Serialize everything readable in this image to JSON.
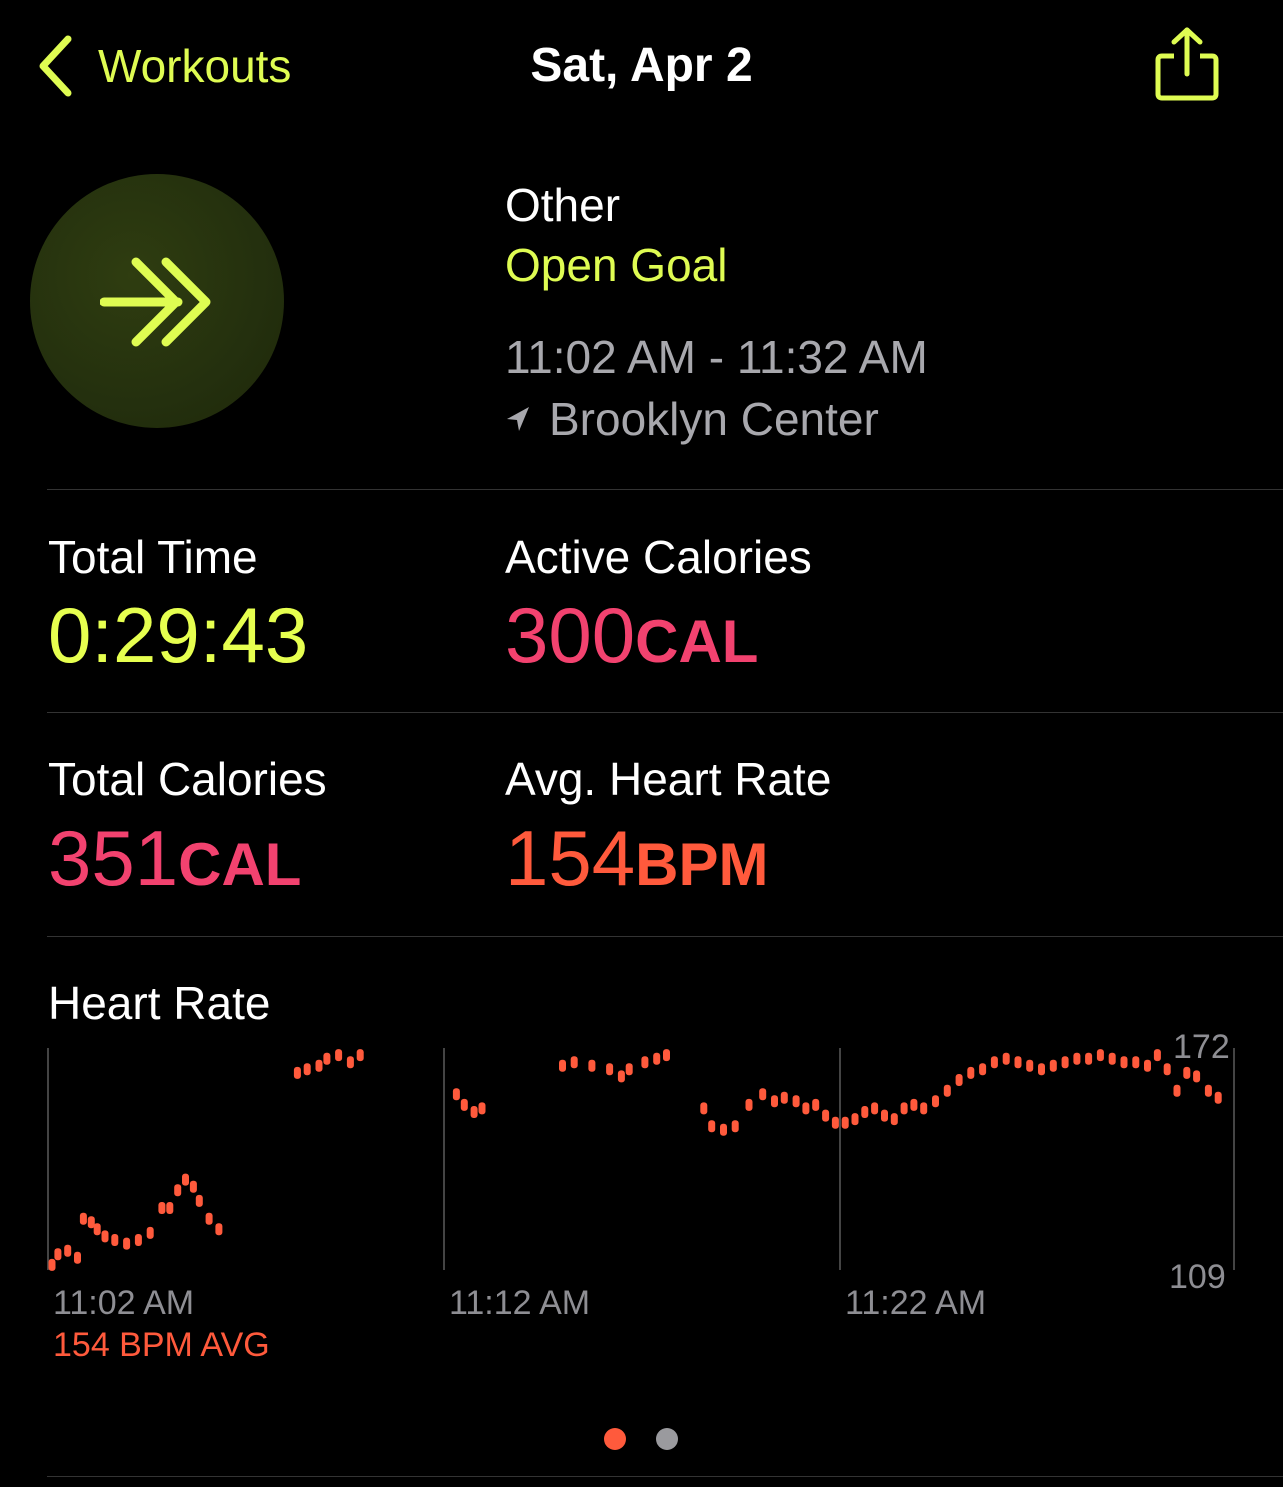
{
  "nav": {
    "back_label": "Workouts",
    "title": "Sat, Apr 2",
    "share_icon": "share-icon"
  },
  "workout": {
    "type": "Other",
    "goal": "Open Goal",
    "time_range": "11:02 AM - 11:32 AM",
    "location": "Brooklyn Center",
    "icon": "double-chevron-right-icon"
  },
  "stats": {
    "total_time_label": "Total Time",
    "total_time_value": "0:29:43",
    "active_calories_label": "Active Calories",
    "active_calories_value": "300",
    "active_calories_unit": "CAL",
    "total_calories_label": "Total Calories",
    "total_calories_value": "351",
    "total_calories_unit": "CAL",
    "avg_hr_label": "Avg. Heart Rate",
    "avg_hr_value": "154",
    "avg_hr_unit": "BPM"
  },
  "heart_rate": {
    "title": "Heart Rate",
    "avg_label": "154 BPM AVG"
  },
  "chart_data": {
    "type": "scatter",
    "title": "Heart Rate",
    "x_tick_labels": [
      "11:02 AM",
      "11:12 AM",
      "11:22 AM"
    ],
    "y_tick_labels": [
      "172",
      "109"
    ],
    "ylim": [
      109,
      172
    ],
    "xlim": [
      0,
      30
    ],
    "x_unit": "minutes since 11:02 AM",
    "color": "#FF5A3C",
    "points": [
      [
        0.0,
        111
      ],
      [
        0.15,
        114
      ],
      [
        0.4,
        115
      ],
      [
        0.65,
        113
      ],
      [
        0.8,
        124
      ],
      [
        1.0,
        123
      ],
      [
        1.15,
        121
      ],
      [
        1.35,
        119
      ],
      [
        1.6,
        118
      ],
      [
        1.9,
        117
      ],
      [
        2.2,
        118
      ],
      [
        2.5,
        120
      ],
      [
        2.8,
        127
      ],
      [
        3.0,
        127
      ],
      [
        3.2,
        132
      ],
      [
        3.4,
        135
      ],
      [
        3.6,
        133
      ],
      [
        3.75,
        129
      ],
      [
        4.0,
        124
      ],
      [
        4.25,
        121
      ],
      [
        6.25,
        165
      ],
      [
        6.5,
        166
      ],
      [
        6.8,
        167
      ],
      [
        7.0,
        169
      ],
      [
        7.3,
        170
      ],
      [
        7.6,
        168
      ],
      [
        7.85,
        170
      ],
      [
        10.3,
        159
      ],
      [
        10.5,
        156
      ],
      [
        10.75,
        154
      ],
      [
        10.95,
        155
      ],
      [
        13.0,
        167
      ],
      [
        13.3,
        168
      ],
      [
        13.75,
        167
      ],
      [
        14.2,
        166
      ],
      [
        14.5,
        164
      ],
      [
        14.7,
        166
      ],
      [
        15.1,
        168
      ],
      [
        15.4,
        169
      ],
      [
        15.65,
        170
      ],
      [
        16.6,
        155
      ],
      [
        16.8,
        150
      ],
      [
        17.1,
        149
      ],
      [
        17.4,
        150
      ],
      [
        17.75,
        156
      ],
      [
        18.1,
        159
      ],
      [
        18.4,
        157
      ],
      [
        18.65,
        158
      ],
      [
        18.95,
        157
      ],
      [
        19.2,
        155
      ],
      [
        19.45,
        156
      ],
      [
        19.7,
        153
      ],
      [
        19.95,
        151
      ],
      [
        20.2,
        151
      ],
      [
        20.45,
        152
      ],
      [
        20.7,
        154
      ],
      [
        20.95,
        155
      ],
      [
        21.2,
        153
      ],
      [
        21.45,
        152
      ],
      [
        21.7,
        155
      ],
      [
        21.95,
        156
      ],
      [
        22.2,
        155
      ],
      [
        22.5,
        157
      ],
      [
        22.8,
        160
      ],
      [
        23.1,
        163
      ],
      [
        23.4,
        165
      ],
      [
        23.7,
        166
      ],
      [
        24.0,
        168
      ],
      [
        24.3,
        169
      ],
      [
        24.6,
        168
      ],
      [
        24.9,
        167
      ],
      [
        25.2,
        166
      ],
      [
        25.5,
        167
      ],
      [
        25.8,
        168
      ],
      [
        26.1,
        169
      ],
      [
        26.4,
        169
      ],
      [
        26.7,
        170
      ],
      [
        27.0,
        169
      ],
      [
        27.3,
        168
      ],
      [
        27.6,
        168
      ],
      [
        27.9,
        167
      ],
      [
        28.15,
        170
      ],
      [
        28.4,
        166
      ],
      [
        28.65,
        160
      ],
      [
        28.9,
        165
      ],
      [
        29.15,
        164
      ],
      [
        29.45,
        160
      ],
      [
        29.7,
        158
      ]
    ]
  }
}
